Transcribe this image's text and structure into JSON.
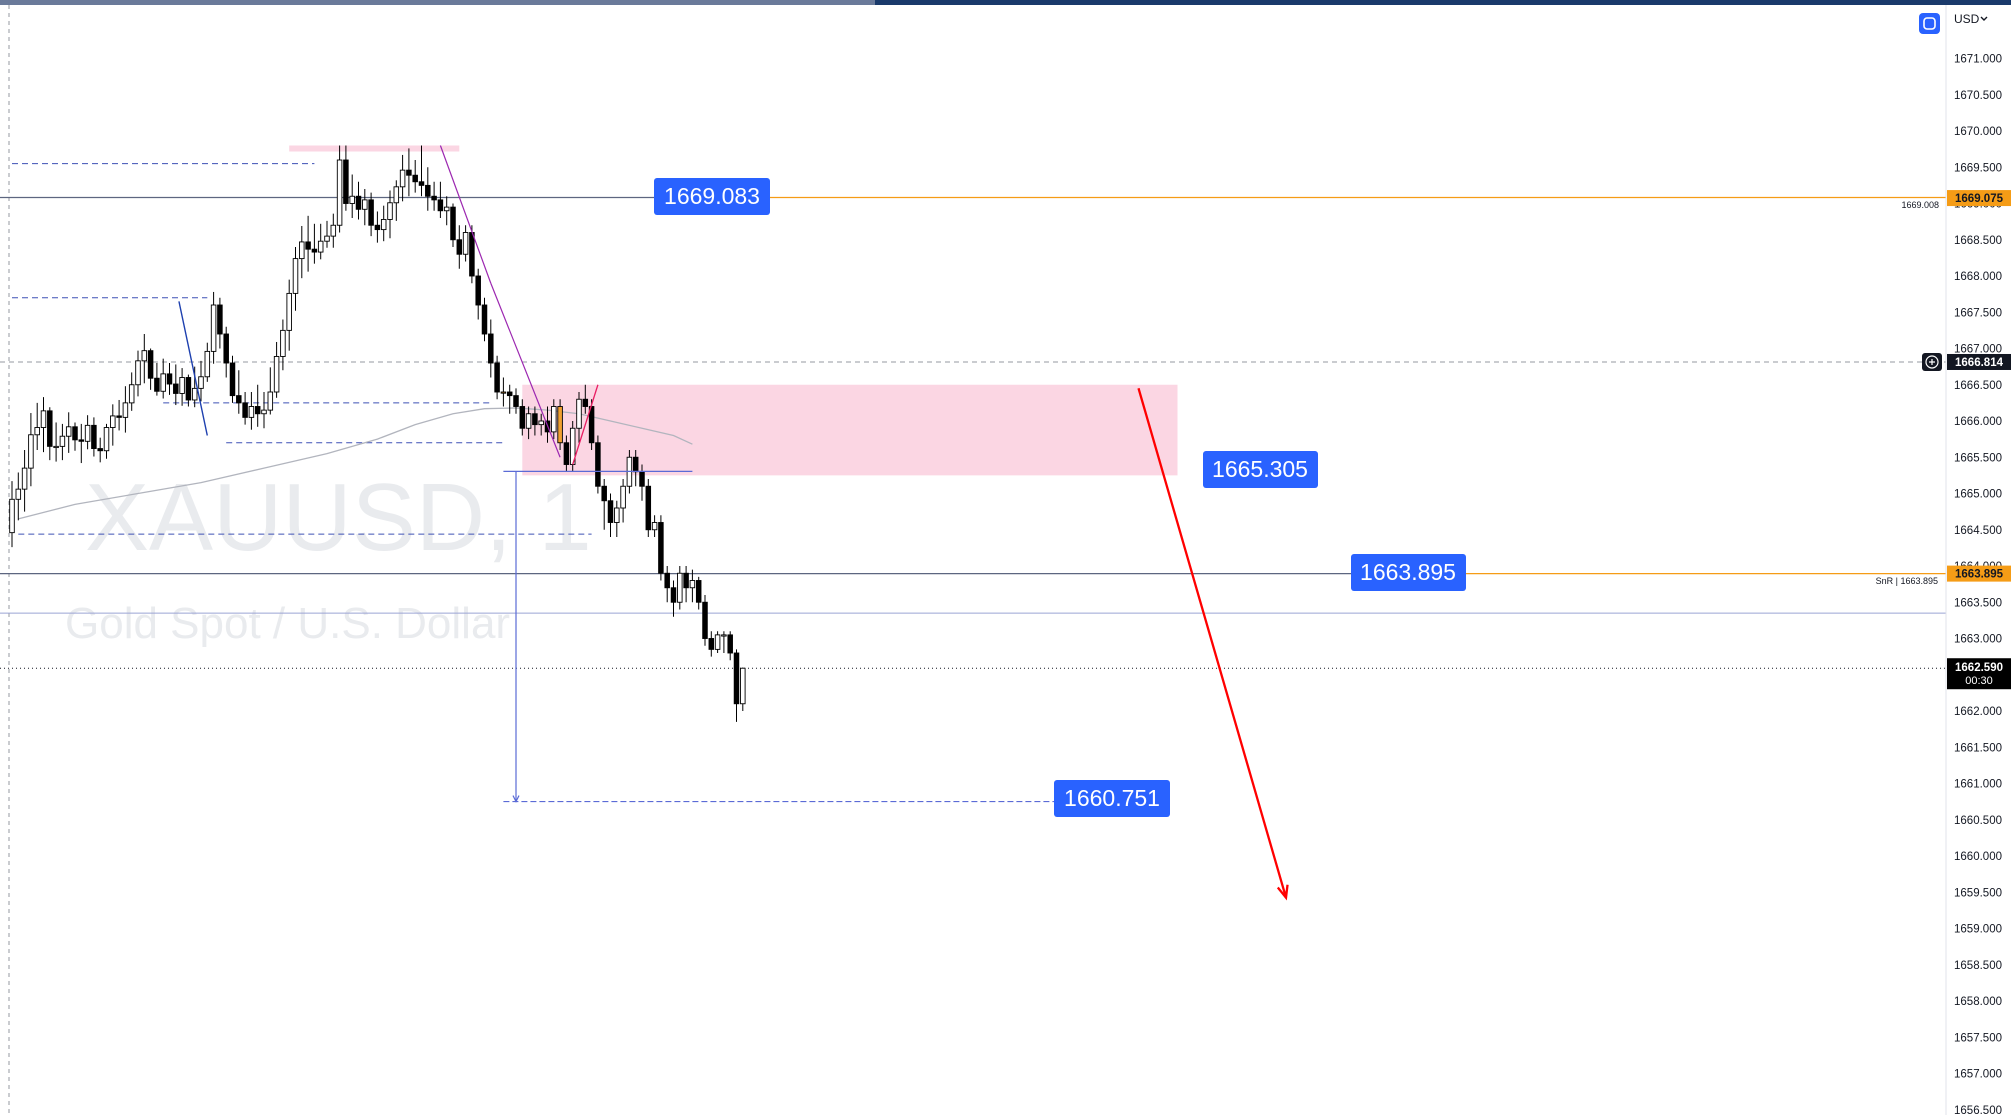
{
  "header": {
    "currency": "USD",
    "currency_dropdown_icon": "chevron-down-icon",
    "settings_icon": "square-toggle-icon"
  },
  "watermark": {
    "symbol": "XAUUSD, 1",
    "description": "Gold Spot / U.S. Dollar"
  },
  "colors": {
    "bull": "#ffffff",
    "bear": "#000000",
    "orange_candle": "#f0a030",
    "label_blue": "#2962ff",
    "orange_line": "#f59c16",
    "zone_pink": "#f8bbd0",
    "arrow_red": "#ff0000",
    "axis_text": "#131722"
  },
  "annotations": {
    "label_1669": "1669.083",
    "label_1665": "1665.305",
    "label_1663": "1663.895",
    "label_1660": "1660.751",
    "small_1669": "1669.008",
    "snr_text": "SnR | 1663.895"
  },
  "axis": {
    "ticks": [
      "1671.000",
      "1670.500",
      "1670.000",
      "1669.500",
      "1669.000",
      "1668.500",
      "1668.000",
      "1667.500",
      "1667.000",
      "1666.500",
      "1666.000",
      "1665.500",
      "1665.000",
      "1664.500",
      "1664.000",
      "1663.500",
      "1663.000",
      "1662.500",
      "1662.000",
      "1661.500",
      "1661.000",
      "1660.500",
      "1660.000",
      "1659.500",
      "1659.000",
      "1658.500",
      "1658.000",
      "1657.500",
      "1657.000",
      "1656.500"
    ],
    "price_tags": [
      {
        "text": "1669.075",
        "value": 1669.075,
        "bg": "#f59c16",
        "fg": "#131722"
      },
      {
        "text": "1666.814",
        "value": 1666.814,
        "bg": "#131722",
        "fg": "#ffffff"
      },
      {
        "text": "1663.895",
        "value": 1663.895,
        "bg": "#f59c16",
        "fg": "#131722"
      }
    ],
    "last_price": {
      "text": "1662.590",
      "countdown": "00:30",
      "value": 1662.59
    }
  },
  "chart_data": {
    "type": "candlestick",
    "symbol": "XAUUSD",
    "timeframe": "1",
    "ylim": [
      1656.5,
      1671.3
    ],
    "x_count": 133,
    "ohlc": [
      [
        1664.46,
        1665.17,
        1664.26,
        1664.92
      ],
      [
        1664.92,
        1665.29,
        1664.63,
        1665.06
      ],
      [
        1665.06,
        1665.6,
        1664.75,
        1665.35
      ],
      [
        1665.35,
        1666.11,
        1665.1,
        1665.81
      ],
      [
        1665.81,
        1666.25,
        1665.6,
        1665.91
      ],
      [
        1665.91,
        1666.33,
        1665.57,
        1666.14
      ],
      [
        1666.14,
        1666.19,
        1665.46,
        1665.65
      ],
      [
        1665.65,
        1665.98,
        1665.44,
        1665.65
      ],
      [
        1665.65,
        1665.96,
        1665.46,
        1665.79
      ],
      [
        1665.79,
        1666.12,
        1665.56,
        1665.92
      ],
      [
        1665.92,
        1665.98,
        1665.59,
        1665.74
      ],
      [
        1665.74,
        1665.96,
        1665.42,
        1665.72
      ],
      [
        1665.72,
        1666.08,
        1665.61,
        1665.94
      ],
      [
        1665.94,
        1666.05,
        1665.51,
        1665.62
      ],
      [
        1665.62,
        1665.77,
        1665.43,
        1665.59
      ],
      [
        1665.59,
        1665.96,
        1665.48,
        1665.91
      ],
      [
        1665.91,
        1666.23,
        1665.66,
        1666.07
      ],
      [
        1666.07,
        1666.29,
        1665.87,
        1666.05
      ],
      [
        1666.05,
        1666.48,
        1665.84,
        1666.25
      ],
      [
        1666.25,
        1666.67,
        1666.14,
        1666.5
      ],
      [
        1666.5,
        1666.97,
        1666.34,
        1666.83
      ],
      [
        1666.83,
        1667.2,
        1666.52,
        1666.97
      ],
      [
        1666.97,
        1667.0,
        1666.43,
        1666.59
      ],
      [
        1666.59,
        1666.8,
        1666.35,
        1666.41
      ],
      [
        1666.41,
        1666.86,
        1666.31,
        1666.65
      ],
      [
        1666.65,
        1666.8,
        1666.36,
        1666.51
      ],
      [
        1666.51,
        1666.78,
        1666.22,
        1666.38
      ],
      [
        1666.38,
        1666.73,
        1666.21,
        1666.6
      ],
      [
        1666.6,
        1666.64,
        1666.2,
        1666.29
      ],
      [
        1666.29,
        1666.75,
        1666.19,
        1666.45
      ],
      [
        1666.45,
        1666.83,
        1666.27,
        1666.61
      ],
      [
        1666.61,
        1667.08,
        1666.54,
        1666.96
      ],
      [
        1666.96,
        1667.78,
        1666.79,
        1667.6
      ],
      [
        1667.6,
        1667.7,
        1667.0,
        1667.2
      ],
      [
        1667.2,
        1667.3,
        1666.6,
        1666.8
      ],
      [
        1666.8,
        1666.9,
        1666.25,
        1666.35
      ],
      [
        1666.35,
        1666.7,
        1666.1,
        1666.25
      ],
      [
        1666.25,
        1666.4,
        1665.95,
        1666.05
      ],
      [
        1666.05,
        1666.4,
        1665.88,
        1666.2
      ],
      [
        1666.2,
        1666.5,
        1665.92,
        1666.1
      ],
      [
        1666.1,
        1666.4,
        1665.9,
        1666.15
      ],
      [
        1666.15,
        1666.74,
        1666.09,
        1666.4
      ],
      [
        1666.4,
        1667.09,
        1666.32,
        1666.89
      ],
      [
        1666.89,
        1667.4,
        1666.7,
        1667.25
      ],
      [
        1667.25,
        1667.95,
        1666.97,
        1667.76
      ],
      [
        1667.76,
        1668.4,
        1667.52,
        1668.24
      ],
      [
        1668.24,
        1668.69,
        1667.97,
        1668.47
      ],
      [
        1668.47,
        1668.83,
        1668.06,
        1668.37
      ],
      [
        1668.37,
        1668.72,
        1668.17,
        1668.33
      ],
      [
        1668.33,
        1668.72,
        1668.23,
        1668.48
      ],
      [
        1668.48,
        1668.76,
        1668.39,
        1668.55
      ],
      [
        1668.55,
        1668.86,
        1668.39,
        1668.7
      ],
      [
        1668.7,
        1669.8,
        1668.6,
        1669.6
      ],
      [
        1669.6,
        1669.8,
        1668.9,
        1669.0
      ],
      [
        1669.0,
        1669.4,
        1668.8,
        1669.1
      ],
      [
        1669.1,
        1669.3,
        1668.78,
        1668.92
      ],
      [
        1668.92,
        1669.2,
        1668.7,
        1669.05
      ],
      [
        1669.05,
        1669.15,
        1668.55,
        1668.7
      ],
      [
        1668.7,
        1668.89,
        1668.46,
        1668.64
      ],
      [
        1668.64,
        1668.97,
        1668.48,
        1668.78
      ],
      [
        1668.78,
        1669.18,
        1668.52,
        1669.01
      ],
      [
        1669.01,
        1669.32,
        1668.76,
        1669.23
      ],
      [
        1669.23,
        1669.67,
        1669.03,
        1669.46
      ],
      [
        1669.46,
        1669.76,
        1669.1,
        1669.39
      ],
      [
        1669.39,
        1669.6,
        1669.15,
        1669.3
      ],
      [
        1669.3,
        1669.8,
        1669.1,
        1669.25
      ],
      [
        1669.25,
        1669.5,
        1668.9,
        1669.1
      ],
      [
        1669.1,
        1669.3,
        1668.9,
        1669.05
      ],
      [
        1669.05,
        1669.3,
        1668.8,
        1668.9
      ],
      [
        1668.9,
        1669.1,
        1668.7,
        1668.95
      ],
      [
        1668.95,
        1669.0,
        1668.4,
        1668.5
      ],
      [
        1668.5,
        1668.7,
        1668.1,
        1668.3
      ],
      [
        1668.3,
        1668.7,
        1668.2,
        1668.6
      ],
      [
        1668.6,
        1668.7,
        1667.9,
        1668.0
      ],
      [
        1668.0,
        1668.1,
        1667.4,
        1667.6
      ],
      [
        1667.6,
        1667.7,
        1667.1,
        1667.2
      ],
      [
        1667.2,
        1667.4,
        1666.6,
        1666.8
      ],
      [
        1666.8,
        1666.9,
        1666.3,
        1666.4
      ],
      [
        1666.4,
        1666.6,
        1666.2,
        1666.4
      ],
      [
        1666.4,
        1666.5,
        1666.1,
        1666.35
      ],
      [
        1666.35,
        1666.45,
        1666.1,
        1666.2
      ],
      [
        1666.2,
        1666.3,
        1665.8,
        1665.9
      ],
      [
        1665.9,
        1666.2,
        1665.75,
        1666.1
      ],
      [
        1666.1,
        1666.2,
        1665.8,
        1665.95
      ],
      [
        1665.95,
        1666.1,
        1665.8,
        1666.0
      ],
      [
        1666.0,
        1666.2,
        1665.7,
        1665.85
      ],
      [
        1665.85,
        1666.3,
        1665.75,
        1666.2
      ],
      [
        1666.2,
        1666.3,
        1665.6,
        1665.7
      ],
      [
        1665.7,
        1665.8,
        1665.3,
        1665.4
      ],
      [
        1665.4,
        1666.0,
        1665.31,
        1665.9
      ],
      [
        1665.9,
        1666.4,
        1665.7,
        1666.3
      ],
      [
        1666.3,
        1666.5,
        1666.1,
        1666.2
      ],
      [
        1666.2,
        1666.3,
        1665.6,
        1665.7
      ],
      [
        1665.7,
        1665.8,
        1665.0,
        1665.1
      ],
      [
        1665.1,
        1665.2,
        1664.5,
        1664.9
      ],
      [
        1664.9,
        1665.0,
        1664.4,
        1664.6
      ],
      [
        1664.6,
        1664.9,
        1664.4,
        1664.8
      ],
      [
        1664.8,
        1665.2,
        1664.6,
        1665.1
      ],
      [
        1665.1,
        1665.6,
        1665.0,
        1665.5
      ],
      [
        1665.5,
        1665.6,
        1665.1,
        1665.3
      ],
      [
        1665.3,
        1665.4,
        1664.9,
        1665.1
      ],
      [
        1665.1,
        1665.2,
        1664.4,
        1664.5
      ],
      [
        1664.5,
        1664.7,
        1664.4,
        1664.6
      ],
      [
        1664.6,
        1664.7,
        1663.8,
        1663.9
      ],
      [
        1663.9,
        1664.0,
        1663.5,
        1663.7
      ],
      [
        1663.7,
        1663.8,
        1663.3,
        1663.5
      ],
      [
        1663.5,
        1664.0,
        1663.4,
        1663.9
      ],
      [
        1663.9,
        1664.0,
        1663.5,
        1663.7
      ],
      [
        1663.7,
        1663.95,
        1663.5,
        1663.8
      ],
      [
        1663.8,
        1663.85,
        1663.4,
        1663.5
      ],
      [
        1663.5,
        1663.6,
        1662.9,
        1663.0
      ],
      [
        1663.0,
        1663.1,
        1662.75,
        1662.85
      ],
      [
        1662.85,
        1663.1,
        1662.8,
        1663.05
      ],
      [
        1663.05,
        1663.1,
        1662.8,
        1663.05
      ],
      [
        1663.05,
        1663.1,
        1662.7,
        1662.8
      ],
      [
        1662.8,
        1662.85,
        1661.85,
        1662.1
      ],
      [
        1662.1,
        1662.6,
        1662.0,
        1662.59
      ]
    ],
    "orange_candles": [
      78,
      87
    ],
    "moving_average": [
      [
        1,
        1664.65
      ],
      [
        10,
        1664.85
      ],
      [
        20,
        1665.0
      ],
      [
        30,
        1665.15
      ],
      [
        40,
        1665.35
      ],
      [
        50,
        1665.55
      ],
      [
        58,
        1665.75
      ],
      [
        64,
        1665.95
      ],
      [
        70,
        1666.1
      ],
      [
        75,
        1666.17
      ],
      [
        80,
        1666.18
      ],
      [
        85,
        1666.15
      ],
      [
        90,
        1666.1
      ],
      [
        95,
        1666.0
      ],
      [
        100,
        1665.9
      ],
      [
        105,
        1665.8
      ],
      [
        108,
        1665.68
      ]
    ],
    "levels": [
      {
        "name": "label-1669",
        "price": 1669.083
      },
      {
        "name": "level-1666",
        "price": 1666.814
      },
      {
        "name": "label-1663",
        "price": 1663.895
      },
      {
        "name": "level-1663-35",
        "price": 1663.35
      },
      {
        "name": "last-price",
        "price": 1662.59
      }
    ],
    "swing_levels": [
      {
        "price": 1669.55,
        "from_x": 0,
        "to_x": 48
      },
      {
        "price": 1667.7,
        "from_x": 0,
        "to_x": 31
      },
      {
        "price": 1666.25,
        "from_x": 24,
        "to_x": 76
      },
      {
        "price": 1665.7,
        "from_x": 34,
        "to_x": 78
      },
      {
        "price": 1664.44,
        "from_x": 1,
        "to_x": 92
      }
    ],
    "zones": [
      {
        "name": "supply-zone",
        "from_x": 81,
        "to_x": 185,
        "top": 1666.5,
        "bottom": 1665.25
      },
      {
        "name": "top-zone",
        "from_x": 44,
        "to_x": 71,
        "top": 1669.8,
        "bottom": 1669.72
      }
    ],
    "measure": {
      "from_price": 1665.305,
      "to_price": 1660.751,
      "x": 80
    },
    "arrow": {
      "from_x": 155,
      "from_price": 1665.9,
      "to_x": 177,
      "to_price": 1659.55
    }
  }
}
